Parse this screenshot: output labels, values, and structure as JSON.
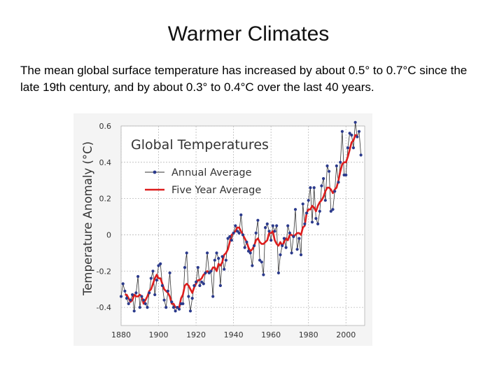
{
  "slide": {
    "title": "Warmer Climates",
    "body": "The mean global surface temperature has increased by about 0.5° to 0.7°C since the late 19th century, and by about 0.3° to 0.4°C over the last 40 years."
  },
  "colors": {
    "annual": "#2b3a8c",
    "annual_line": "#333333",
    "five_year": "#dd1d1d",
    "grid": "#b9b9b9",
    "plot_bg": "#ffffff",
    "chart_bg": "#f4f4f4"
  },
  "chart_data": {
    "type": "line",
    "title": "Global Temperatures",
    "xlabel": "",
    "ylabel": "Temperature Anomaly (°C)",
    "xlim": [
      1880,
      2010
    ],
    "ylim": [
      -0.5,
      0.6
    ],
    "x_ticks": [
      1880,
      1900,
      1920,
      1940,
      1960,
      1980,
      2000
    ],
    "x_tick_labels": [
      "1880",
      "1900",
      "1920",
      "1940",
      "1960",
      "1980",
      "2000"
    ],
    "y_ticks": [
      0.6,
      0.4,
      0.2,
      0,
      -0.2,
      -0.4
    ],
    "y_tick_labels": [
      "0.6",
      "0.4",
      "0.2",
      "0",
      "-0.2",
      "-0.4"
    ],
    "grid": true,
    "legend_position": "top-left",
    "series": [
      {
        "name": "Annual Average",
        "style": "line-markers",
        "x": [
          1880,
          1881,
          1882,
          1883,
          1884,
          1885,
          1886,
          1887,
          1888,
          1889,
          1890,
          1891,
          1892,
          1893,
          1894,
          1895,
          1896,
          1897,
          1898,
          1899,
          1900,
          1901,
          1902,
          1903,
          1904,
          1905,
          1906,
          1907,
          1908,
          1909,
          1910,
          1911,
          1912,
          1913,
          1914,
          1915,
          1916,
          1917,
          1918,
          1919,
          1920,
          1921,
          1922,
          1923,
          1924,
          1925,
          1926,
          1927,
          1928,
          1929,
          1930,
          1931,
          1932,
          1933,
          1934,
          1935,
          1936,
          1937,
          1938,
          1939,
          1940,
          1941,
          1942,
          1943,
          1944,
          1945,
          1946,
          1947,
          1948,
          1949,
          1950,
          1951,
          1952,
          1953,
          1954,
          1955,
          1956,
          1957,
          1958,
          1959,
          1960,
          1961,
          1962,
          1963,
          1964,
          1965,
          1966,
          1967,
          1968,
          1969,
          1970,
          1971,
          1972,
          1973,
          1974,
          1975,
          1976,
          1977,
          1978,
          1979,
          1980,
          1981,
          1982,
          1983,
          1984,
          1985,
          1986,
          1987,
          1988,
          1989,
          1990,
          1991,
          1992,
          1993,
          1994,
          1995,
          1996,
          1997,
          1998,
          1999,
          2000,
          2001,
          2002,
          2003,
          2004,
          2005,
          2006,
          2007,
          2008
        ],
        "values": [
          -0.34,
          -0.27,
          -0.31,
          -0.35,
          -0.38,
          -0.36,
          -0.33,
          -0.42,
          -0.32,
          -0.23,
          -0.4,
          -0.34,
          -0.36,
          -0.38,
          -0.4,
          -0.32,
          -0.24,
          -0.2,
          -0.33,
          -0.25,
          -0.17,
          -0.16,
          -0.28,
          -0.36,
          -0.4,
          -0.31,
          -0.21,
          -0.37,
          -0.4,
          -0.42,
          -0.4,
          -0.41,
          -0.38,
          -0.38,
          -0.18,
          -0.1,
          -0.34,
          -0.42,
          -0.35,
          -0.28,
          -0.26,
          -0.18,
          -0.28,
          -0.26,
          -0.27,
          -0.21,
          -0.1,
          -0.21,
          -0.2,
          -0.34,
          -0.14,
          -0.1,
          -0.13,
          -0.28,
          -0.12,
          -0.19,
          -0.14,
          -0.02,
          -0.01,
          -0.03,
          0.01,
          0.05,
          0.02,
          0.01,
          0.11,
          0.0,
          -0.07,
          -0.04,
          -0.09,
          -0.1,
          -0.17,
          -0.06,
          0.01,
          0.08,
          -0.14,
          -0.15,
          -0.22,
          0.04,
          0.06,
          0.02,
          -0.03,
          0.05,
          0.02,
          0.05,
          -0.21,
          -0.11,
          -0.06,
          -0.02,
          -0.07,
          0.05,
          0.01,
          -0.1,
          -0.01,
          0.14,
          -0.08,
          -0.02,
          -0.11,
          0.17,
          0.06,
          0.12,
          0.19,
          0.26,
          0.07,
          0.26,
          0.09,
          0.06,
          0.13,
          0.27,
          0.31,
          0.19,
          0.38,
          0.35,
          0.13,
          0.14,
          0.24,
          0.38,
          0.29,
          0.4,
          0.57,
          0.33,
          0.33,
          0.48,
          0.56,
          0.55,
          0.48,
          0.62,
          0.54,
          0.57,
          0.44
        ]
      },
      {
        "name": "Five Year Average",
        "style": "line",
        "x": [
          1882,
          1883,
          1884,
          1885,
          1886,
          1887,
          1888,
          1889,
          1890,
          1891,
          1892,
          1893,
          1894,
          1895,
          1896,
          1897,
          1898,
          1899,
          1900,
          1901,
          1902,
          1903,
          1904,
          1905,
          1906,
          1907,
          1908,
          1909,
          1910,
          1911,
          1912,
          1913,
          1914,
          1915,
          1916,
          1917,
          1918,
          1919,
          1920,
          1921,
          1922,
          1923,
          1924,
          1925,
          1926,
          1927,
          1928,
          1929,
          1930,
          1931,
          1932,
          1933,
          1934,
          1935,
          1936,
          1937,
          1938,
          1939,
          1940,
          1941,
          1942,
          1943,
          1944,
          1945,
          1946,
          1947,
          1948,
          1949,
          1950,
          1951,
          1952,
          1953,
          1954,
          1955,
          1956,
          1957,
          1958,
          1959,
          1960,
          1961,
          1962,
          1963,
          1964,
          1965,
          1966,
          1967,
          1968,
          1969,
          1970,
          1971,
          1972,
          1973,
          1974,
          1975,
          1976,
          1977,
          1978,
          1979,
          1980,
          1981,
          1982,
          1983,
          1984,
          1985,
          1986,
          1987,
          1988,
          1989,
          1990,
          1991,
          1992,
          1993,
          1994,
          1995,
          1996,
          1997,
          1998,
          1999,
          2000,
          2001,
          2002,
          2003,
          2004,
          2005,
          2006
        ],
        "values": [
          -0.33,
          -0.33,
          -0.35,
          -0.37,
          -0.36,
          -0.33,
          -0.34,
          -0.34,
          -0.33,
          -0.34,
          -0.38,
          -0.36,
          -0.34,
          -0.31,
          -0.3,
          -0.27,
          -0.24,
          -0.22,
          -0.24,
          -0.24,
          -0.27,
          -0.3,
          -0.31,
          -0.32,
          -0.34,
          -0.38,
          -0.38,
          -0.4,
          -0.4,
          -0.4,
          -0.35,
          -0.33,
          -0.28,
          -0.27,
          -0.28,
          -0.3,
          -0.32,
          -0.29,
          -0.27,
          -0.25,
          -0.25,
          -0.24,
          -0.22,
          -0.21,
          -0.2,
          -0.21,
          -0.2,
          -0.18,
          -0.18,
          -0.2,
          -0.16,
          -0.17,
          -0.15,
          -0.11,
          -0.1,
          -0.08,
          -0.04,
          0.0,
          0.01,
          0.02,
          0.04,
          0.04,
          0.02,
          0.0,
          -0.02,
          -0.04,
          -0.07,
          -0.09,
          -0.08,
          -0.06,
          -0.03,
          -0.02,
          -0.04,
          -0.05,
          -0.05,
          -0.04,
          -0.03,
          0.01,
          0.01,
          0.02,
          -0.03,
          -0.05,
          -0.06,
          -0.04,
          -0.06,
          -0.04,
          -0.02,
          -0.03,
          0.0,
          0.0,
          -0.01,
          0.0,
          0.01,
          0.01,
          0.0,
          0.04,
          0.05,
          0.12,
          0.14,
          0.14,
          0.16,
          0.15,
          0.13,
          0.16,
          0.18,
          0.19,
          0.21,
          0.24,
          0.26,
          0.26,
          0.25,
          0.23,
          0.25,
          0.26,
          0.3,
          0.35,
          0.39,
          0.4,
          0.4,
          0.43,
          0.47,
          0.51,
          0.52,
          0.55,
          0.55
        ]
      }
    ]
  }
}
